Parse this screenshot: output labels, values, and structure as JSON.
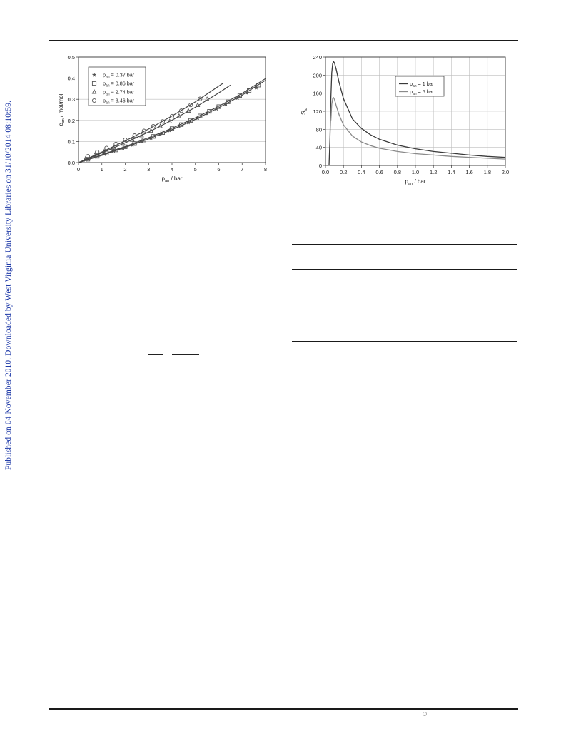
{
  "sidebar": {
    "text": "Published on 04 November 2010. Downloaded by West Virginia University Libraries on 31/10/2014 08:10:59."
  },
  "colors": {
    "sidebar_link": "#1f3aa8",
    "rules": "#1a1a1a"
  },
  "chart_data": [
    {
      "type": "scatter",
      "title": "",
      "xlabel": "p_an / bar",
      "ylabel": "c_an / mol/mol",
      "xlim": [
        0,
        8
      ],
      "ylim": [
        0,
        0.5
      ],
      "xticks": [
        "0",
        "1",
        "2",
        "3",
        "4",
        "5",
        "6",
        "7",
        "8"
      ],
      "yticks": [
        "0.0",
        "0.1",
        "0.2",
        "0.3",
        "0.4",
        "0.5"
      ],
      "grid": "horizontal",
      "legend_position": "top-left",
      "series": [
        {
          "name": "p_an = 0.37 bar",
          "marker": "star",
          "points": [
            [
              0.3,
              0.013
            ],
            [
              0.7,
              0.026
            ],
            [
              1.1,
              0.04
            ],
            [
              1.5,
              0.055
            ],
            [
              1.9,
              0.068
            ],
            [
              2.3,
              0.083
            ],
            [
              2.7,
              0.1
            ],
            [
              3.1,
              0.116
            ],
            [
              3.5,
              0.134
            ],
            [
              3.9,
              0.152
            ],
            [
              4.3,
              0.172
            ],
            [
              4.7,
              0.19
            ],
            [
              5.1,
              0.211
            ],
            [
              5.5,
              0.232
            ],
            [
              5.9,
              0.255
            ],
            [
              6.3,
              0.277
            ],
            [
              6.8,
              0.306
            ],
            [
              7.2,
              0.33
            ],
            [
              7.6,
              0.355
            ]
          ],
          "fit": [
            [
              0,
              0
            ],
            [
              1,
              0.034
            ],
            [
              2,
              0.072
            ],
            [
              3,
              0.112
            ],
            [
              4,
              0.156
            ],
            [
              5,
              0.205
            ],
            [
              6,
              0.26
            ],
            [
              7,
              0.32
            ],
            [
              8,
              0.39
            ]
          ]
        },
        {
          "name": "p_an = 0.86 bar",
          "marker": "square",
          "points": [
            [
              0.4,
              0.016
            ],
            [
              0.8,
              0.03
            ],
            [
              1.2,
              0.045
            ],
            [
              1.6,
              0.06
            ],
            [
              2.0,
              0.075
            ],
            [
              2.4,
              0.09
            ],
            [
              2.8,
              0.107
            ],
            [
              3.2,
              0.124
            ],
            [
              3.6,
              0.142
            ],
            [
              4.0,
              0.161
            ],
            [
              4.4,
              0.18
            ],
            [
              4.8,
              0.2
            ],
            [
              5.2,
              0.221
            ],
            [
              5.6,
              0.243
            ],
            [
              6.0,
              0.265
            ],
            [
              6.4,
              0.288
            ],
            [
              6.9,
              0.318
            ],
            [
              7.3,
              0.342
            ],
            [
              7.7,
              0.367
            ]
          ],
          "fit": [
            [
              0,
              0
            ],
            [
              1,
              0.037
            ],
            [
              2,
              0.076
            ],
            [
              3,
              0.118
            ],
            [
              4,
              0.163
            ],
            [
              5,
              0.212
            ],
            [
              6,
              0.267
            ],
            [
              7,
              0.328
            ],
            [
              8,
              0.398
            ]
          ]
        },
        {
          "name": "p_an = 2.74 bar",
          "marker": "triangle",
          "points": [
            [
              0.3,
              0.018
            ],
            [
              0.7,
              0.035
            ],
            [
              1.1,
              0.052
            ],
            [
              1.5,
              0.07
            ],
            [
              1.9,
              0.089
            ],
            [
              2.3,
              0.108
            ],
            [
              2.7,
              0.129
            ],
            [
              3.1,
              0.15
            ],
            [
              3.5,
              0.172
            ],
            [
              3.9,
              0.195
            ],
            [
              4.3,
              0.22
            ],
            [
              4.7,
              0.245
            ],
            [
              5.1,
              0.272
            ],
            [
              5.5,
              0.3
            ]
          ],
          "fit": [
            [
              0,
              0
            ],
            [
              1,
              0.046
            ],
            [
              2,
              0.094
            ],
            [
              3,
              0.145
            ],
            [
              4,
              0.201
            ],
            [
              5,
              0.262
            ],
            [
              6,
              0.33
            ],
            [
              6.5,
              0.367
            ]
          ]
        },
        {
          "name": "p_an = 3.46 bar",
          "marker": "circle",
          "points": [
            [
              0.4,
              0.03
            ],
            [
              0.8,
              0.05
            ],
            [
              1.2,
              0.069
            ],
            [
              1.6,
              0.088
            ],
            [
              2.0,
              0.108
            ],
            [
              2.4,
              0.128
            ],
            [
              2.8,
              0.15
            ],
            [
              3.2,
              0.172
            ],
            [
              3.6,
              0.195
            ],
            [
              4.0,
              0.22
            ],
            [
              4.4,
              0.246
            ],
            [
              4.8,
              0.273
            ],
            [
              5.2,
              0.302
            ]
          ],
          "fit": [
            [
              0,
              0
            ],
            [
              1,
              0.05
            ],
            [
              2,
              0.103
            ],
            [
              3,
              0.159
            ],
            [
              4,
              0.221
            ],
            [
              5,
              0.288
            ],
            [
              6,
              0.362
            ],
            [
              6.2,
              0.377
            ]
          ]
        }
      ]
    },
    {
      "type": "line",
      "title": "",
      "xlabel": "p_an / bar",
      "ylabel": "S_id",
      "xlim": [
        0,
        2.0
      ],
      "ylim": [
        0,
        240
      ],
      "xticks": [
        "0.0",
        "0.2",
        "0.4",
        "0.6",
        "0.8",
        "1.0",
        "1.2",
        "1.4",
        "1.6",
        "1.8",
        "2.0"
      ],
      "yticks": [
        "0",
        "40",
        "80",
        "120",
        "160",
        "200",
        "240"
      ],
      "grid": "both",
      "legend_position": "right",
      "series": [
        {
          "name": "p_an = 1 bar",
          "color": "#3a3a3a",
          "points": [
            [
              0.04,
              0
            ],
            [
              0.05,
              60
            ],
            [
              0.06,
              150
            ],
            [
              0.07,
              205
            ],
            [
              0.08,
              226
            ],
            [
              0.09,
              230
            ],
            [
              0.1,
              227
            ],
            [
              0.12,
              212
            ],
            [
              0.15,
              185
            ],
            [
              0.2,
              148
            ],
            [
              0.3,
              103
            ],
            [
              0.4,
              82
            ],
            [
              0.5,
              68
            ],
            [
              0.6,
              58
            ],
            [
              0.8,
              45
            ],
            [
              1.0,
              37
            ],
            [
              1.2,
              31
            ],
            [
              1.4,
              27
            ],
            [
              1.6,
              23
            ],
            [
              1.8,
              20
            ],
            [
              2.0,
              18
            ]
          ]
        },
        {
          "name": "p_an = 5 bar",
          "color": "#8a8a8a",
          "points": [
            [
              0.06,
              100
            ],
            [
              0.07,
              135
            ],
            [
              0.08,
              148
            ],
            [
              0.09,
              150
            ],
            [
              0.1,
              146
            ],
            [
              0.12,
              132
            ],
            [
              0.15,
              113
            ],
            [
              0.2,
              90
            ],
            [
              0.3,
              65
            ],
            [
              0.4,
              52
            ],
            [
              0.5,
              44
            ],
            [
              0.6,
              38
            ],
            [
              0.8,
              31
            ],
            [
              1.0,
              26
            ],
            [
              1.2,
              23
            ],
            [
              1.4,
              20
            ],
            [
              1.6,
              18
            ],
            [
              1.8,
              16
            ],
            [
              2.0,
              14
            ]
          ]
        }
      ]
    }
  ]
}
